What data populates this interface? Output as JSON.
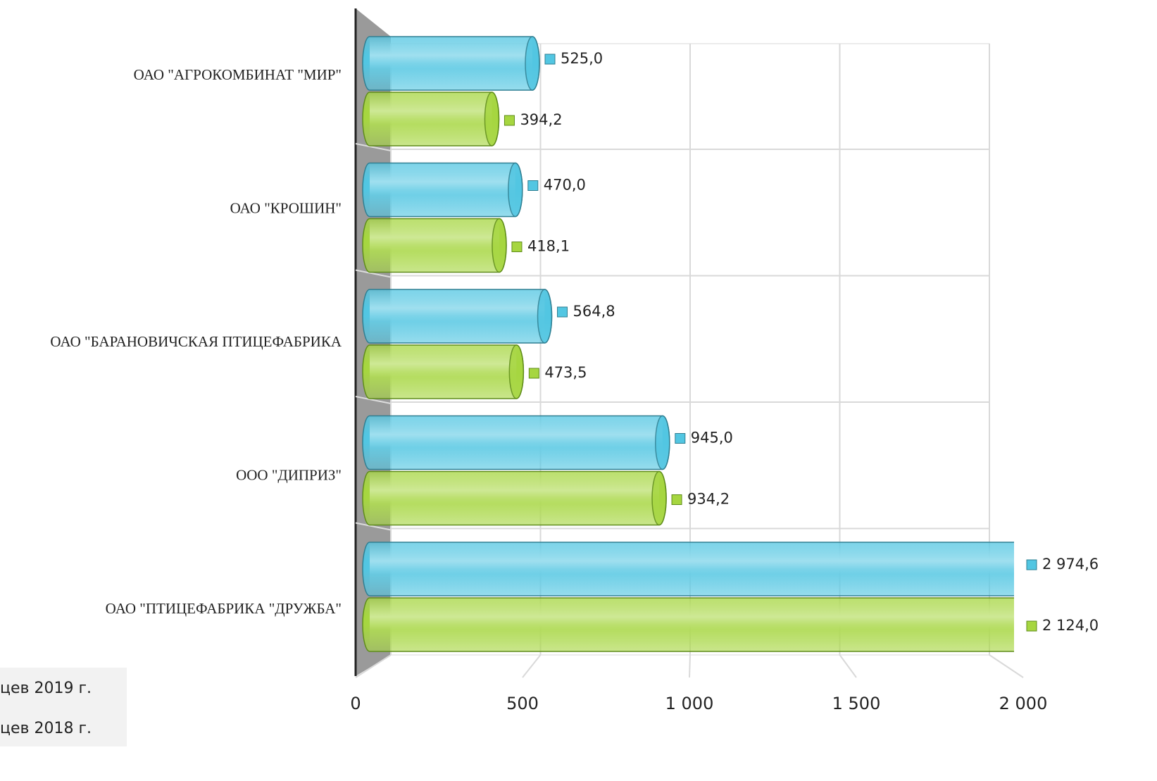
{
  "chart_data": {
    "type": "bar",
    "orientation": "horizontal",
    "categories": [
      "ОАО \"АГРОКОМБИНАТ \"МИР\"",
      "ОАО \"КРОШИН\"",
      "ОАО \"БАРАНОВИЧСКАЯ ПТИЦЕФАБРИКА",
      "ООО \"ДИПРИЗ\"",
      "ОАО \"ПТИЦЕФАБРИКА \"ДРУЖБА\""
    ],
    "series": [
      {
        "name": "цев 2019 г.",
        "color": "#52c6e2",
        "values": [
          525.0,
          470.0,
          564.8,
          945.0,
          2974.6
        ],
        "value_labels": [
          "525,0",
          "470,0",
          "564,8",
          "945,0",
          "2 974,6"
        ]
      },
      {
        "name": "цев 2018 г.",
        "color": "#a6d640",
        "values": [
          394.2,
          418.1,
          473.5,
          934.2,
          2124.0
        ],
        "value_labels": [
          "394,2",
          "418,1",
          "473,5",
          "934,2",
          "2 124,0"
        ]
      }
    ],
    "xlim": [
      0,
      2000
    ],
    "xticks": [
      0,
      500,
      {
        "value": 1000,
        "label": "1 000"
      },
      {
        "value": 1500,
        "label": "1 500"
      },
      {
        "value": 2000,
        "label": "2 000"
      }
    ],
    "grid": true
  }
}
